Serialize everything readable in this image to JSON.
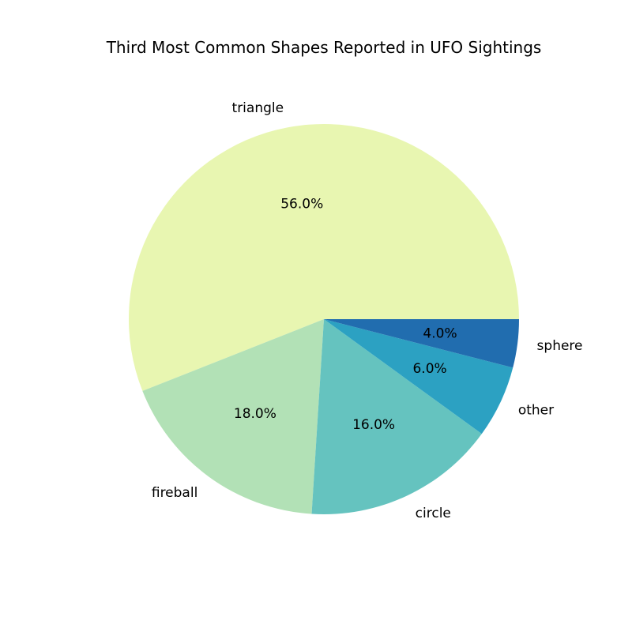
{
  "chart_data": {
    "type": "pie",
    "title": "Third Most Common Shapes Reported in UFO Sightings",
    "categories": [
      "triangle",
      "fireball",
      "circle",
      "other",
      "sphere"
    ],
    "values": [
      56.0,
      18.0,
      16.0,
      6.0,
      4.0
    ],
    "percent_labels": [
      "56.0%",
      "18.0%",
      "16.0%",
      "6.0%",
      "4.0%"
    ],
    "colors": [
      "#e8f6b1",
      "#b2e1b6",
      "#65c3bf",
      "#2ca1c2",
      "#216daf"
    ],
    "start_angle_deg": 0,
    "direction": "counterclockwise",
    "legend": "none"
  }
}
